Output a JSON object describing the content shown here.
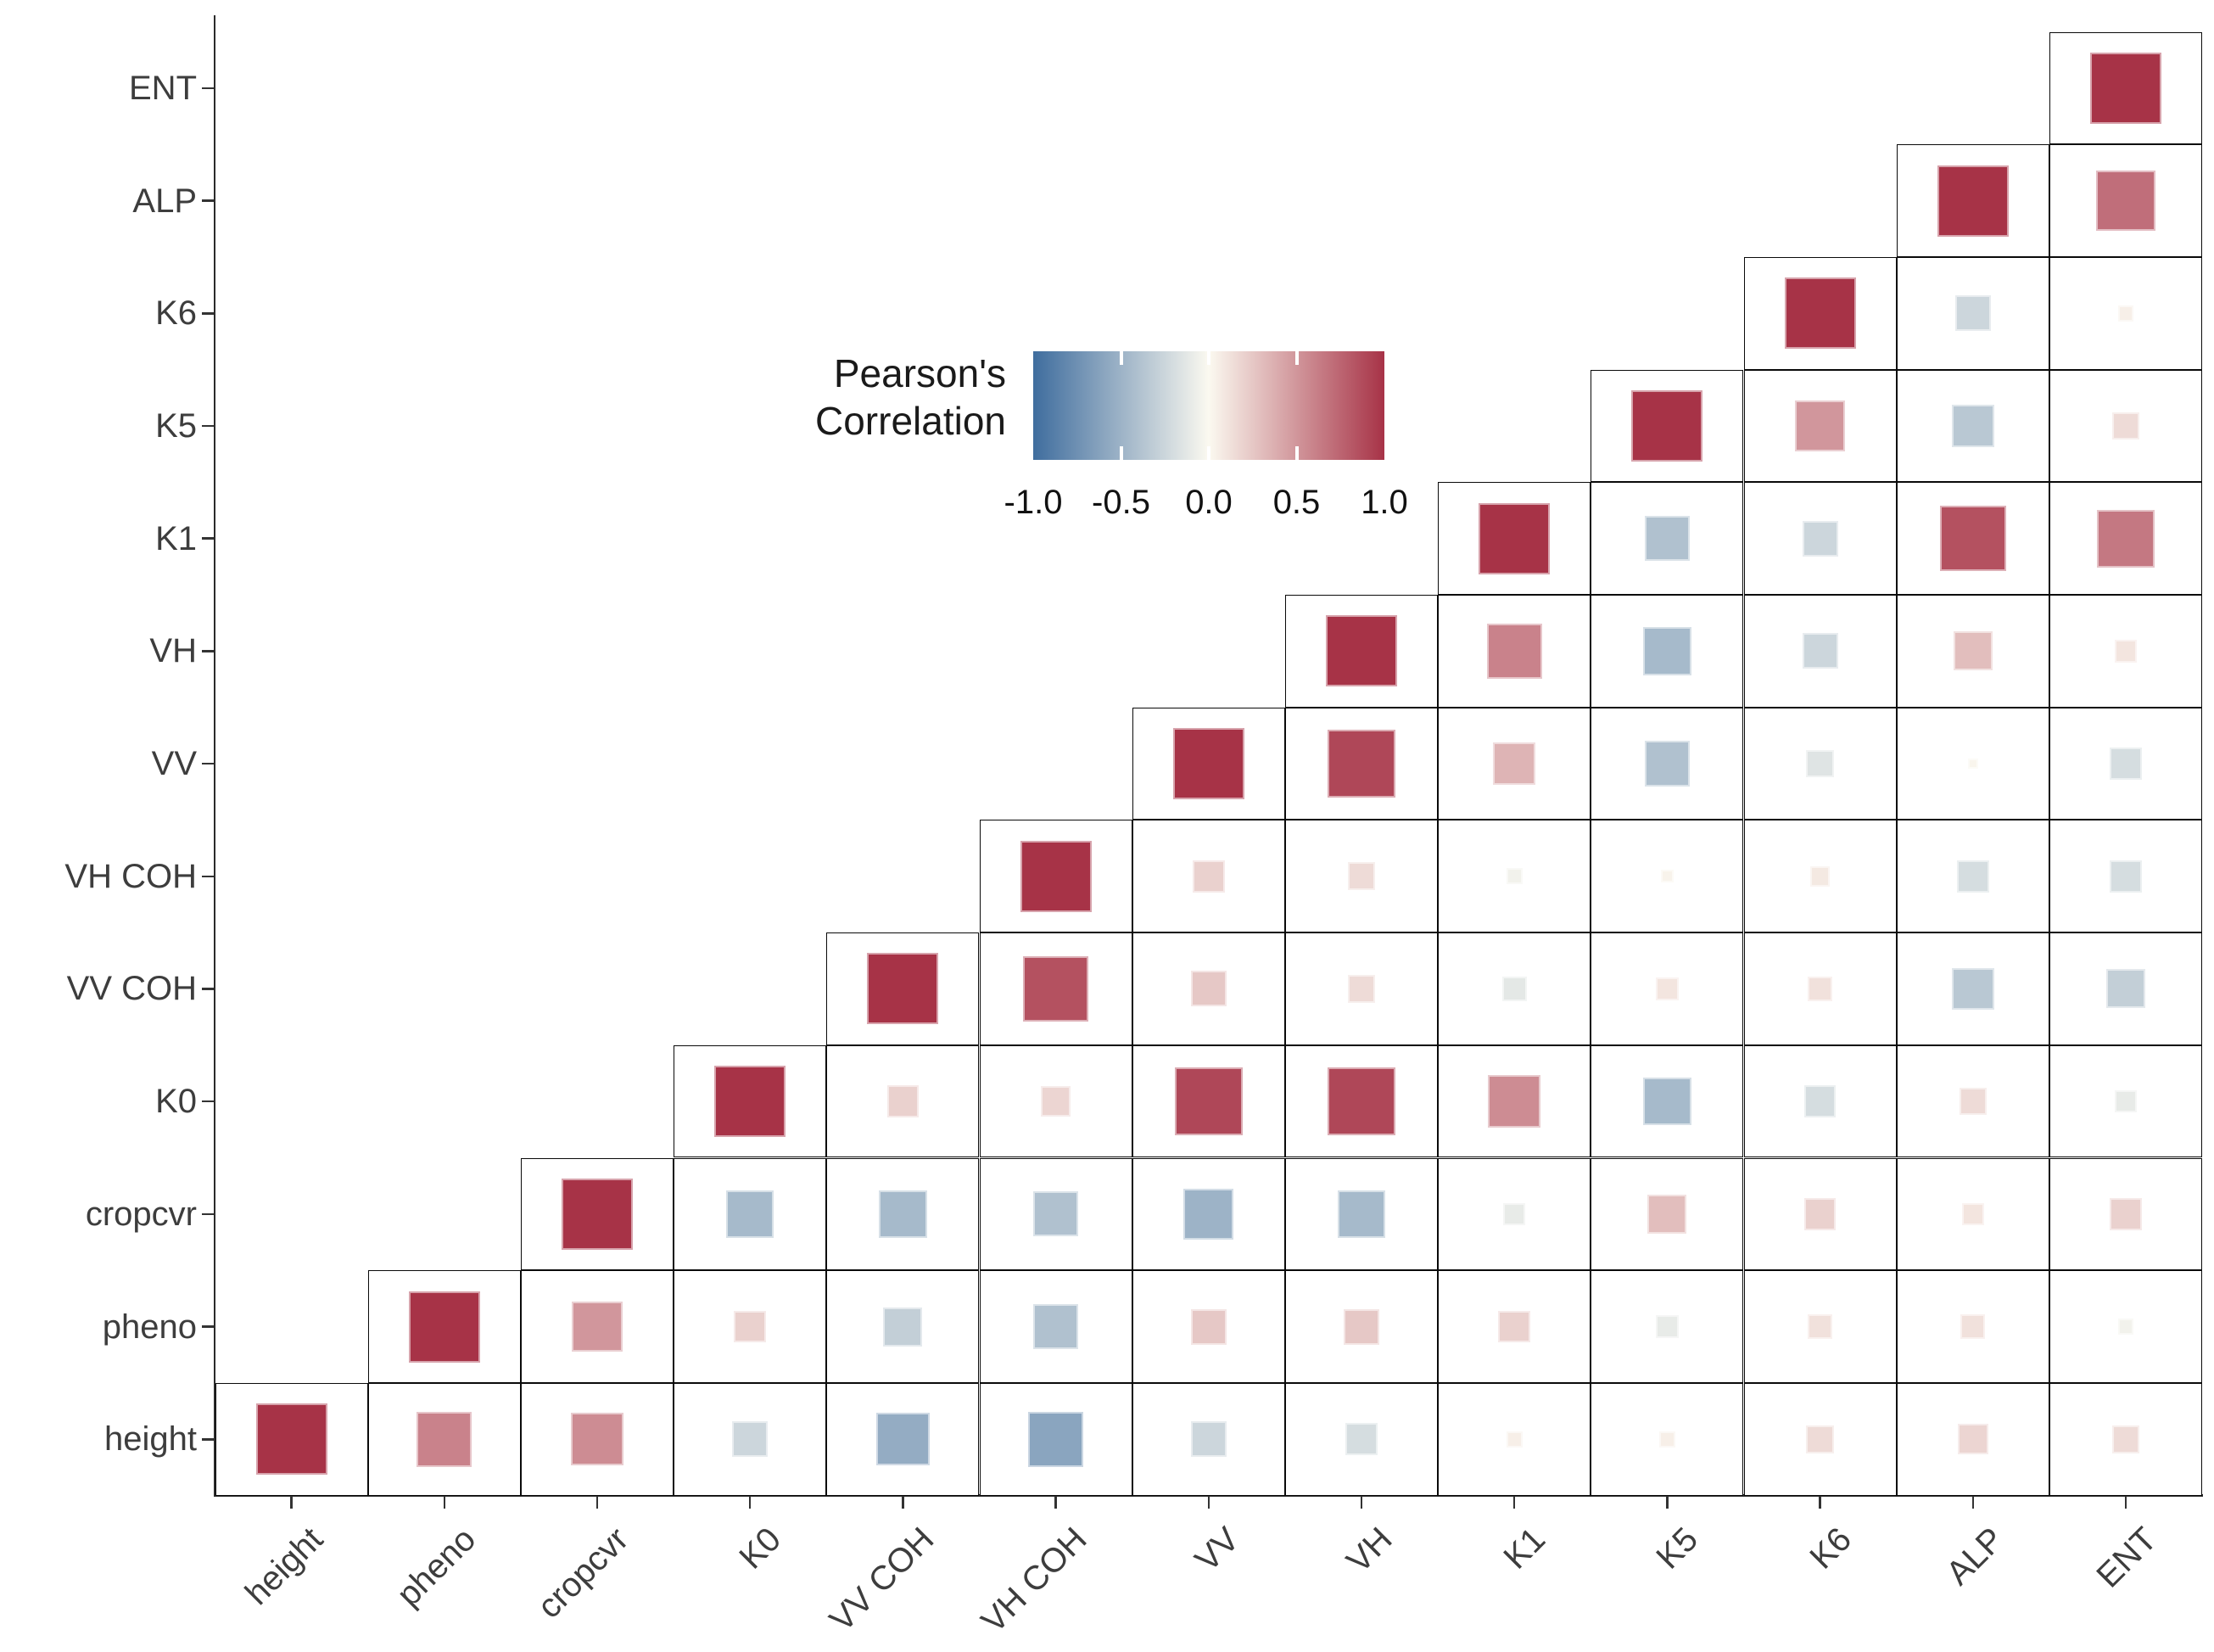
{
  "chart_data": {
    "type": "heatmap",
    "subtype": "pearson-correlation-matrix-upper-triangle",
    "legend": {
      "title_line1": "Pearson's",
      "title_line2": "Correlation",
      "ticks": [
        "-1.0",
        "-0.5",
        "0.0",
        "0.5",
        "1.0"
      ],
      "min": -1.0,
      "max": 1.0,
      "position": "upper-center-left inside plot"
    },
    "colors": {
      "negative_end": "#3f6d9e",
      "center": "#fbf9f0",
      "positive_end": "#a73347",
      "cell_border": "#0a0a0a",
      "axis_label": "#3d3d3d"
    },
    "glyph": "square, area proportional to |r|, color encodes signed r",
    "variables": [
      "height",
      "pheno",
      "cropcvr",
      "K0",
      "VV COH",
      "VH COH",
      "VV",
      "VH",
      "K1",
      "K5",
      "K6",
      "ALP",
      "ENT"
    ],
    "x_labels_left_to_right": [
      "height",
      "pheno",
      "cropcvr",
      "K0",
      "VV COH",
      "VH COH",
      "VV",
      "VH",
      "K1",
      "K5",
      "K6",
      "ALP",
      "ENT"
    ],
    "y_labels_top_to_bottom": [
      "ENT",
      "ALP",
      "K6",
      "K5",
      "K1",
      "VH",
      "VV",
      "VH COH",
      "VV COH",
      "K0",
      "cropcvr",
      "pheno",
      "height"
    ],
    "matrix_rows": [
      {
        "var": "height",
        "values": [
          1,
          0.6,
          0.55,
          -0.25,
          -0.55,
          -0.6,
          -0.25,
          -0.2,
          0.05,
          0.05,
          0.15,
          0.18,
          0.15
        ]
      },
      {
        "var": "pheno",
        "values": [
          null,
          1,
          0.5,
          0.2,
          -0.3,
          -0.4,
          0.25,
          0.25,
          0.2,
          -0.1,
          0.12,
          0.12,
          -0.05
        ]
      },
      {
        "var": "cropcvr",
        "values": [
          null,
          null,
          1,
          -0.45,
          -0.45,
          -0.4,
          -0.5,
          -0.45,
          -0.1,
          0.3,
          0.2,
          0.1,
          0.2
        ]
      },
      {
        "var": "K0",
        "values": [
          null,
          null,
          null,
          1,
          0.2,
          0.18,
          0.9,
          0.9,
          0.55,
          -0.45,
          -0.2,
          0.15,
          -0.1
        ]
      },
      {
        "var": "VV COH",
        "values": [
          null,
          null,
          null,
          null,
          1,
          0.85,
          0.25,
          0.15,
          -0.12,
          0.1,
          0.12,
          -0.35,
          -0.3
        ]
      },
      {
        "var": "VH COH",
        "values": [
          null,
          null,
          null,
          null,
          null,
          1,
          0.2,
          0.15,
          -0.05,
          0.03,
          0.08,
          -0.2,
          -0.2
        ]
      },
      {
        "var": "VV",
        "values": [
          null,
          null,
          null,
          null,
          null,
          null,
          1,
          0.9,
          0.35,
          -0.4,
          -0.15,
          0.02,
          -0.2
        ]
      },
      {
        "var": "VH",
        "values": [
          null,
          null,
          null,
          null,
          null,
          null,
          null,
          1,
          0.6,
          -0.45,
          -0.25,
          0.3,
          0.1
        ]
      },
      {
        "var": "K1",
        "values": [
          null,
          null,
          null,
          null,
          null,
          null,
          null,
          null,
          1,
          -0.4,
          -0.25,
          0.85,
          0.65
        ]
      },
      {
        "var": "K5",
        "values": [
          null,
          null,
          null,
          null,
          null,
          null,
          null,
          null,
          null,
          1,
          0.5,
          -0.35,
          0.15
        ]
      },
      {
        "var": "K6",
        "values": [
          null,
          null,
          null,
          null,
          null,
          null,
          null,
          null,
          null,
          null,
          1,
          -0.25,
          0.05
        ]
      },
      {
        "var": "ALP",
        "values": [
          null,
          null,
          null,
          null,
          null,
          null,
          null,
          null,
          null,
          null,
          null,
          1,
          0.7
        ]
      },
      {
        "var": "ENT",
        "values": [
          null,
          null,
          null,
          null,
          null,
          null,
          null,
          null,
          null,
          null,
          null,
          null,
          1
        ]
      }
    ]
  }
}
